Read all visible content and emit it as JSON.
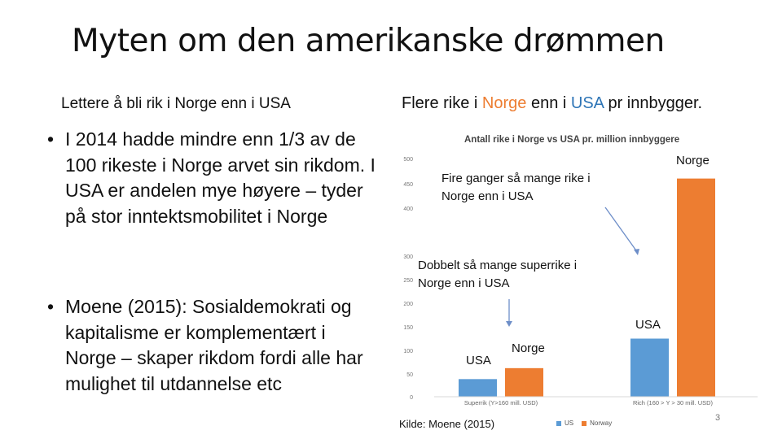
{
  "slide": {
    "title": "Myten om den amerikanske drømmen",
    "subtitle_left": "Lettere å bli rik i Norge enn i USA",
    "subtitle_right": {
      "part1": "Flere rike i ",
      "norway": "Norge",
      "part2": " enn i ",
      "usa": "USA",
      "part3": " pr innbygger."
    },
    "bullets": [
      "I 2014 hadde mindre enn 1/3 av de 100 rikeste i Norge arvet sin rikdom. I USA er andelen mye høyere – tyder på stor inntektsmobilitet i Norge",
      "Moene (2015): Sosialdemokrati og kapitalisme er komplementært i Norge – skaper rikdom fordi alle har mulighet til utdannelse etc"
    ],
    "bullet_symbol": "•",
    "source": "Kilde: Moene (2015)",
    "page_number": "3"
  },
  "annotations": {
    "fire_ganger": "Fire ganger så mange rike i Norge enn i USA",
    "dobbelt": "Dobbelt så mange superrike i Norge enn i USA",
    "label_norge_top": "Norge",
    "label_usa_right": "USA",
    "label_usa_left": "USA",
    "label_norge_left": "Norge"
  },
  "chart_data": {
    "type": "bar",
    "title": "Antall rike i Norge vs USA pr. million innbyggere",
    "categories": [
      "Superrik (Y>160 mill. USD)",
      "Rich (160 > Y > 30 mill. USD)"
    ],
    "series": [
      {
        "name": "US",
        "values": [
          37,
          122
        ],
        "color": "#5B9BD5"
      },
      {
        "name": "Norway",
        "values": [
          60,
          458
        ],
        "color": "#ED7D31"
      }
    ],
    "yticks": [
      "0",
      "50",
      "100",
      "150",
      "200",
      "250",
      "300",
      "400",
      "450",
      "500"
    ],
    "ylim": [
      0,
      500
    ],
    "grid": false,
    "legend": "bottom"
  },
  "colors": {
    "us": "#5B9BD5",
    "norway": "#ED7D31",
    "arrow": "#6D8EC8",
    "usa_text": "#2E75B6"
  }
}
